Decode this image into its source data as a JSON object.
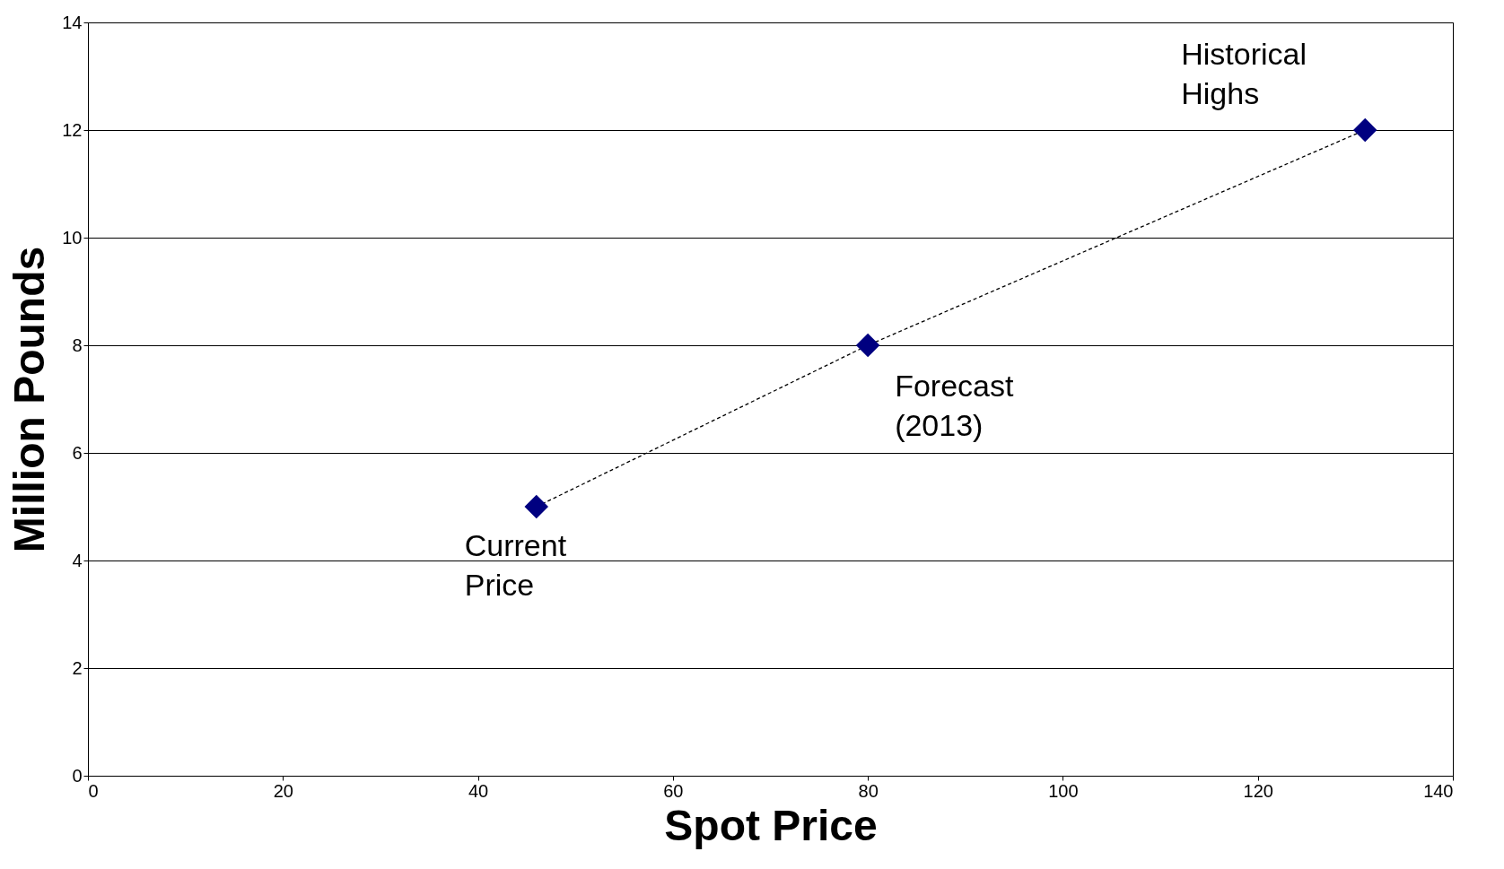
{
  "chart_data": {
    "type": "line",
    "xlabel": "Spot Price",
    "ylabel": "Million Pounds",
    "x": [
      46,
      80,
      131
    ],
    "series": [
      {
        "color": "#000080",
        "values": [
          5,
          8,
          12
        ]
      }
    ],
    "xlim": [
      0,
      140
    ],
    "xticks": [
      0,
      20,
      40,
      60,
      80,
      100,
      120,
      140
    ],
    "ylim": [
      0,
      14
    ],
    "yticks": [
      0,
      2,
      4,
      6,
      8,
      10,
      12,
      14
    ],
    "grid": "y",
    "marker": "diamond",
    "line_style": "dashed",
    "annotations": [
      {
        "text": "Current Price",
        "x": 46,
        "y": 5
      },
      {
        "text": "Forecast (2013)",
        "x": 80,
        "y": 8
      },
      {
        "text": "Historical Highs",
        "x": 131,
        "y": 12
      }
    ]
  }
}
